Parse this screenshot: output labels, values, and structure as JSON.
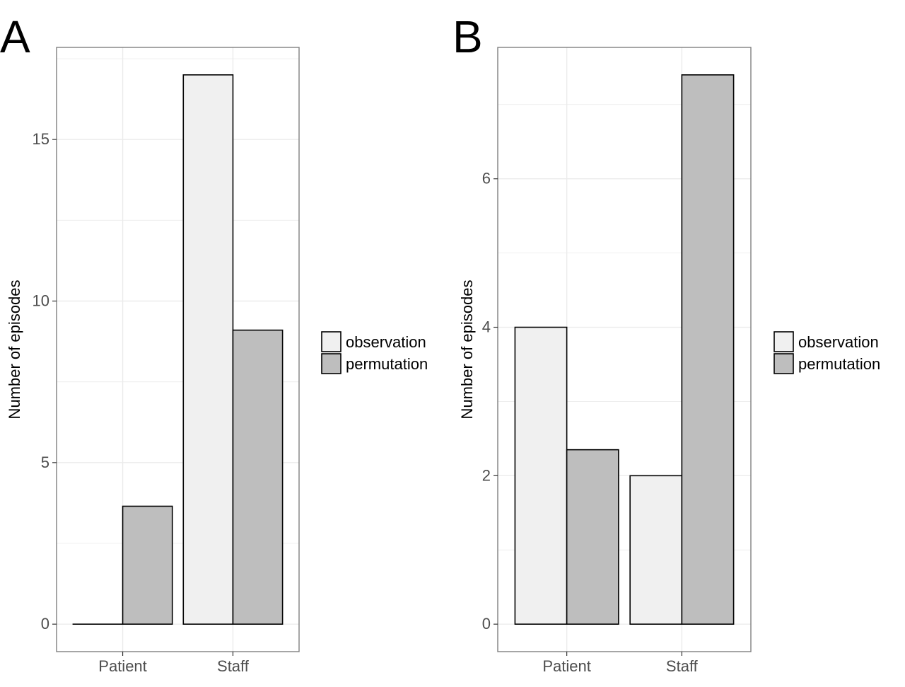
{
  "figure": {
    "panel_labels": [
      "A",
      "B"
    ]
  },
  "colors": {
    "observation": "#f0f0f0",
    "permutation": "#bebebe",
    "border": "#000000",
    "grid": "#ebebeb",
    "panel_border": "#7f7f7f"
  },
  "chart_data": [
    {
      "type": "bar",
      "panel": "A",
      "categories": [
        "Patient",
        "Staff"
      ],
      "series": [
        {
          "name": "observation",
          "values": [
            0,
            17
          ]
        },
        {
          "name": "permutation",
          "values": [
            3.65,
            9.1
          ]
        }
      ],
      "xlabel": "",
      "ylabel": "Number of episodes",
      "ylim": [
        -0.85,
        17.85
      ],
      "yticks": [
        0,
        5,
        10,
        15
      ],
      "grid": true,
      "legend": "right"
    },
    {
      "type": "bar",
      "panel": "B",
      "categories": [
        "Patient",
        "Staff"
      ],
      "series": [
        {
          "name": "observation",
          "values": [
            4,
            2
          ]
        },
        {
          "name": "permutation",
          "values": [
            2.35,
            7.4
          ]
        }
      ],
      "xlabel": "",
      "ylabel": "Number of episodes",
      "ylim": [
        -0.37,
        7.77
      ],
      "yticks": [
        0,
        2,
        4,
        6
      ],
      "grid": true,
      "legend": "right"
    }
  ]
}
